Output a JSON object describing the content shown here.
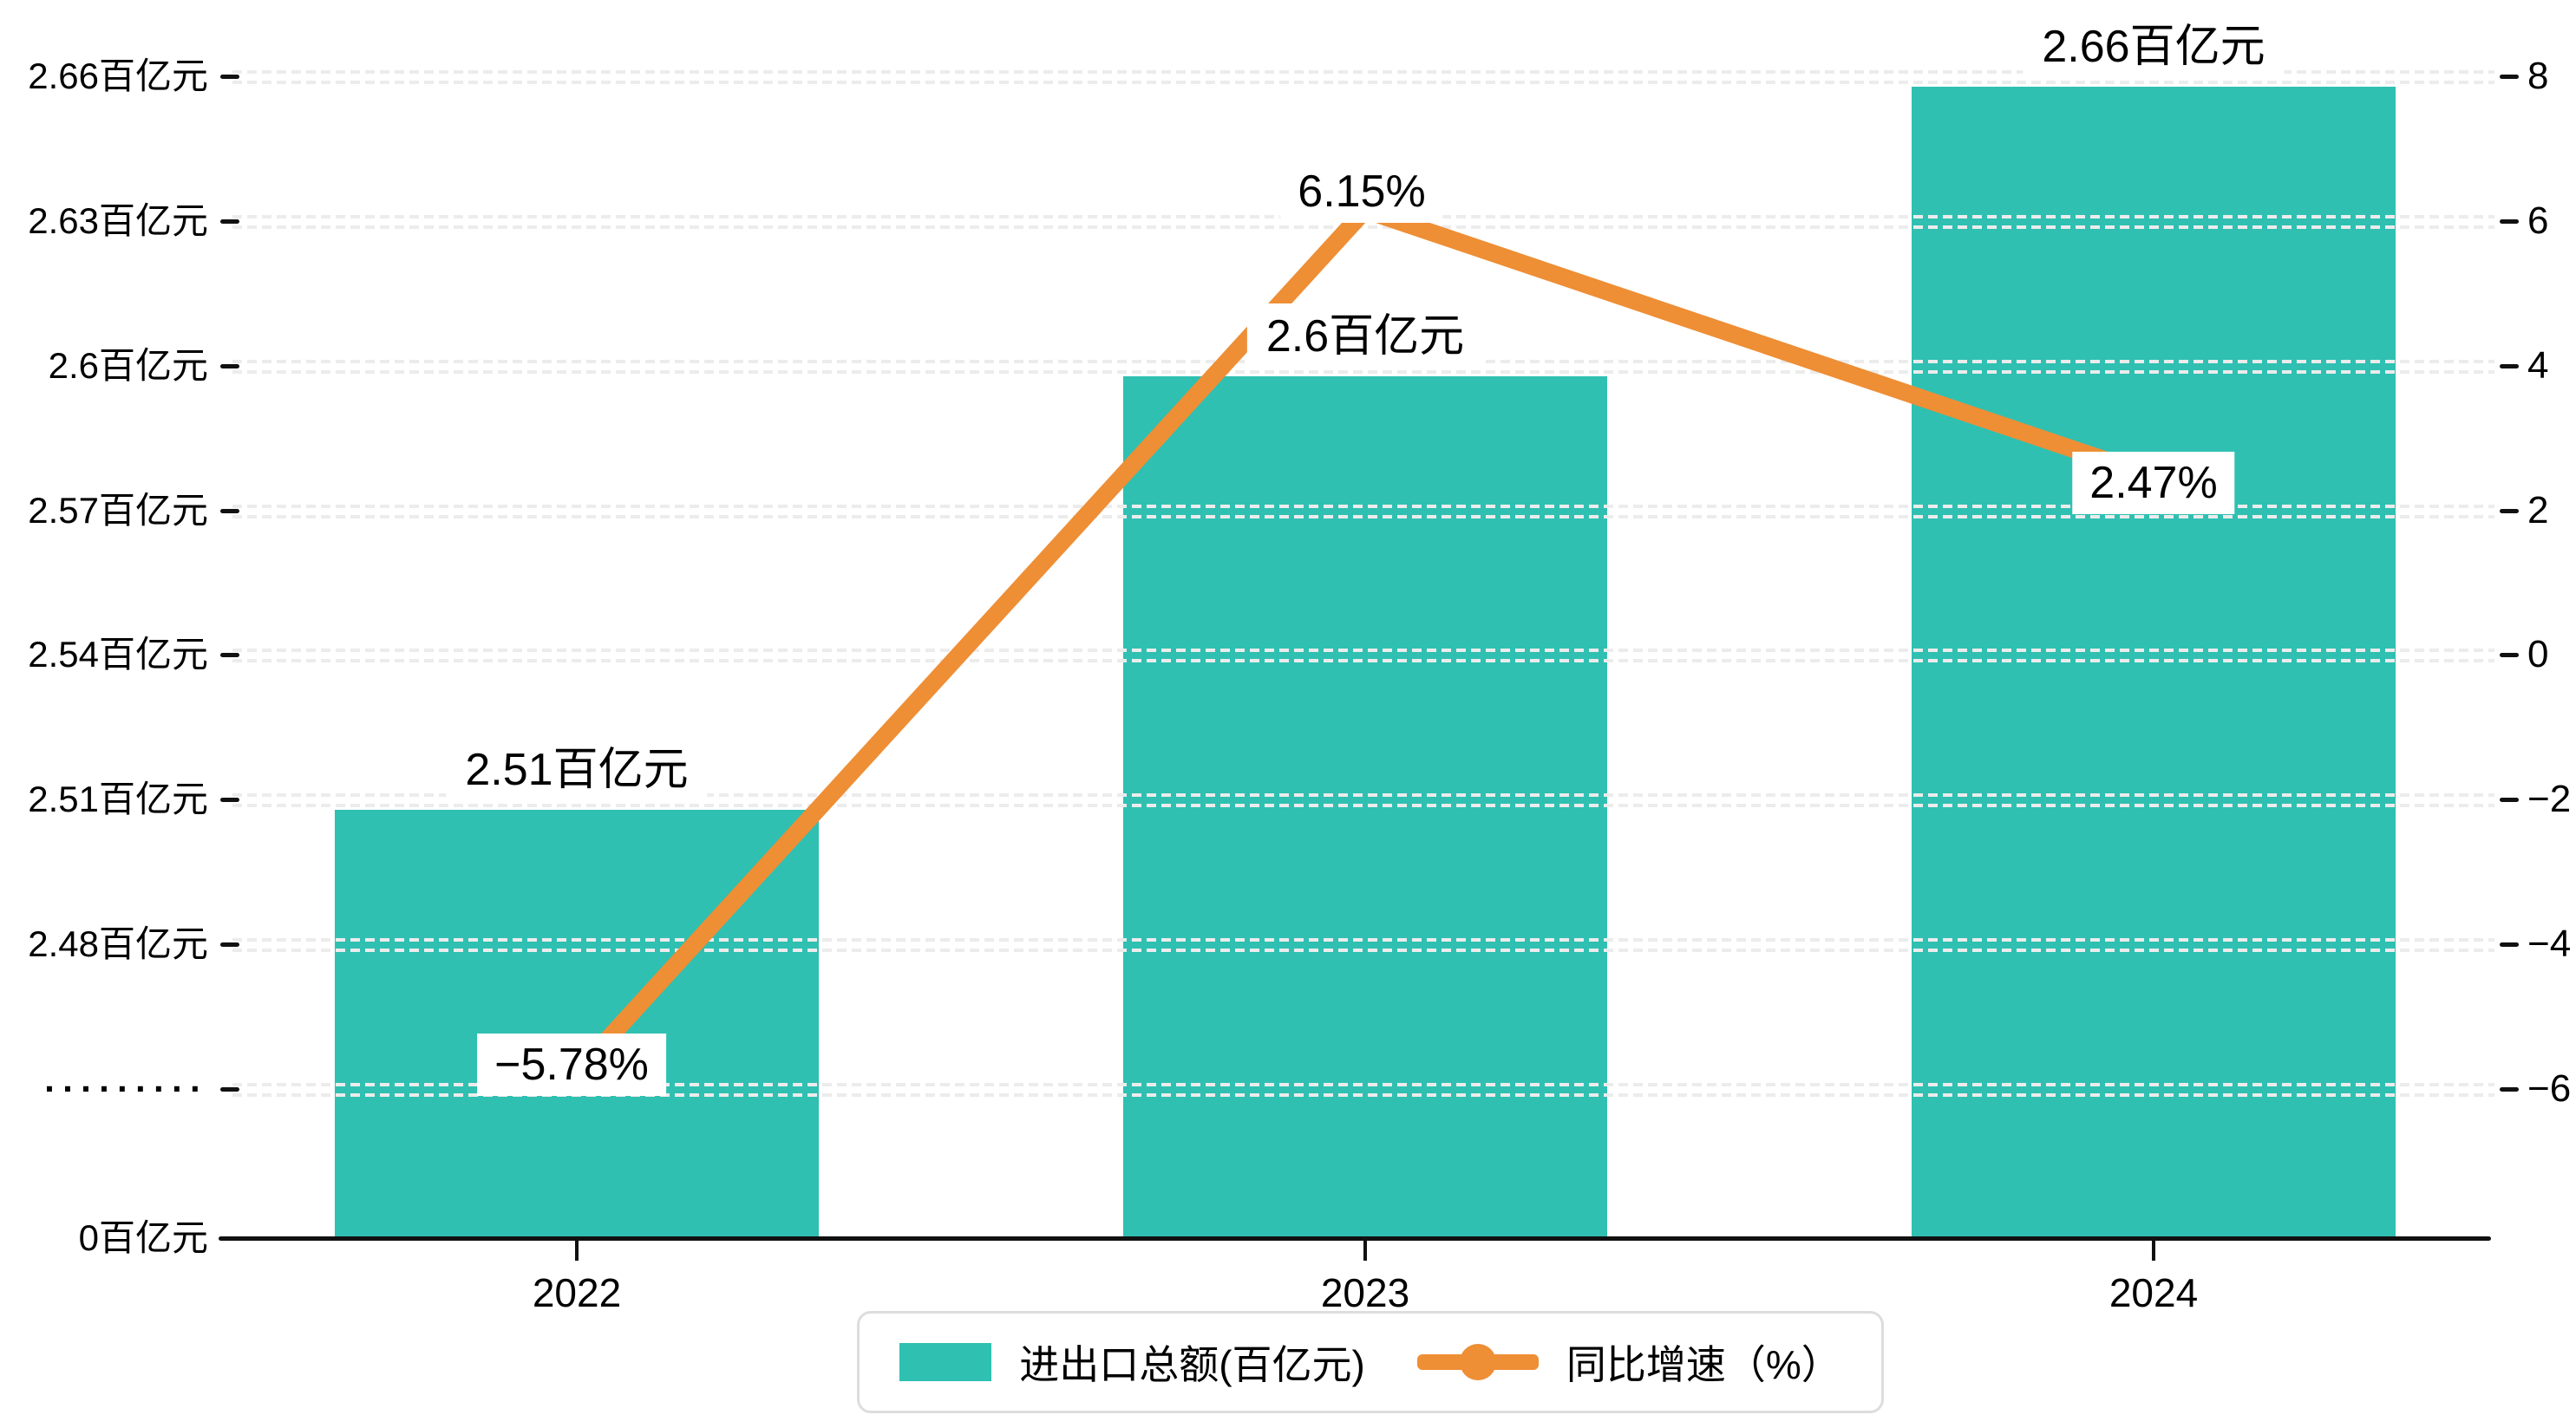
{
  "chart_data": {
    "type": "bar+line",
    "categories": [
      "2022",
      "2023",
      "2024"
    ],
    "series": [
      {
        "name": "进出口总额(百亿元)",
        "type": "bar",
        "values": [
          2.51,
          2.6,
          2.66
        ],
        "labels": [
          "2.51百亿元",
          "2.6百亿元",
          "2.66百亿元"
        ]
      },
      {
        "name": "同比增速（%）",
        "type": "line",
        "values": [
          -5.78,
          6.15,
          2.47
        ],
        "labels": [
          "−5.78%",
          "6.15%",
          "2.47%"
        ]
      }
    ],
    "left_axis": {
      "unit": "百亿元",
      "top_value": 2.66,
      "step": 0.03,
      "ticks": [
        "2.66百亿元",
        "2.63百亿元",
        "2.6百亿元",
        "2.57百亿元",
        "2.54百亿元",
        "2.51百亿元",
        "2.48百亿元",
        "·········"
      ],
      "origin_label": "0百亿元",
      "broken": true
    },
    "right_axis": {
      "ticks": [
        "8",
        "6",
        "4",
        "2",
        "0",
        "−2",
        "−4",
        "−6"
      ],
      "top_value": 8,
      "step": -2
    },
    "legend": [
      {
        "label": "进出口总额(百亿元)",
        "marker": "bar-swatch"
      },
      {
        "label": "同比增速（%）",
        "marker": "line-dot"
      }
    ],
    "grid": "double-dashed horizontal",
    "legend_position": "bottom-center"
  },
  "colors": {
    "bar": "#2FC0B2",
    "line": "#EE8E35",
    "grid": "#ECECEC",
    "axis": "#111111",
    "text": "#000000",
    "label_bg": "#FFFFFF",
    "legend_border": "#DDDDDD"
  }
}
